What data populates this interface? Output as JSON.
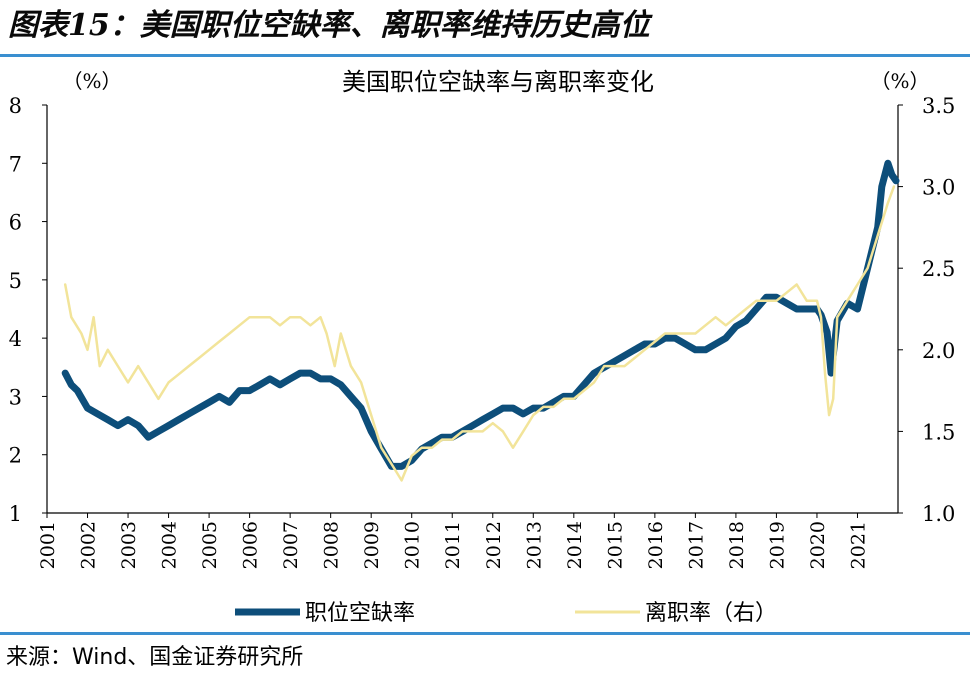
{
  "figure": {
    "title": "图表15：美国职位空缺率、离职率维持历史高位",
    "source": "来源：Wind、国金证券研究所"
  },
  "chart_data": {
    "type": "line",
    "title": "美国职位空缺率与离职率变化",
    "left_unit": "（%）",
    "right_unit": "（%）",
    "x_ticks": [
      "2001",
      "2002",
      "2003",
      "2004",
      "2005",
      "2006",
      "2007",
      "2008",
      "2009",
      "2010",
      "2011",
      "2012",
      "2013",
      "2014",
      "2015",
      "2016",
      "2017",
      "2018",
      "2019",
      "2020",
      "2021"
    ],
    "left_axis": {
      "min": 1,
      "max": 8,
      "ticks": [
        "1",
        "2",
        "3",
        "4",
        "5",
        "6",
        "7",
        "8"
      ]
    },
    "right_axis": {
      "min": 1.0,
      "max": 3.5,
      "ticks": [
        "1.0",
        "1.5",
        "2.0",
        "2.5",
        "3.0",
        "3.5"
      ]
    },
    "grid": false,
    "legend_position": "bottom",
    "series": [
      {
        "name": "职位空缺率",
        "axis": "left",
        "color": "#0d4e7a",
        "x": [
          2001.45,
          2001.6,
          2001.75,
          2002.0,
          2002.25,
          2002.5,
          2002.75,
          2003.0,
          2003.25,
          2003.5,
          2003.75,
          2004.0,
          2004.25,
          2004.5,
          2004.75,
          2005.0,
          2005.25,
          2005.5,
          2005.75,
          2006.0,
          2006.25,
          2006.5,
          2006.75,
          2007.0,
          2007.25,
          2007.5,
          2007.75,
          2008.0,
          2008.25,
          2008.5,
          2008.75,
          2009.0,
          2009.25,
          2009.5,
          2009.75,
          2010.0,
          2010.25,
          2010.5,
          2010.75,
          2011.0,
          2011.25,
          2011.5,
          2011.75,
          2012.0,
          2012.25,
          2012.5,
          2012.75,
          2013.0,
          2013.25,
          2013.5,
          2013.75,
          2014.0,
          2014.25,
          2014.5,
          2014.75,
          2015.0,
          2015.25,
          2015.5,
          2015.75,
          2016.0,
          2016.25,
          2016.5,
          2016.75,
          2017.0,
          2017.25,
          2017.5,
          2017.75,
          2018.0,
          2018.25,
          2018.5,
          2018.75,
          2019.0,
          2019.25,
          2019.5,
          2019.75,
          2020.0,
          2020.1,
          2020.25,
          2020.35,
          2020.5,
          2020.75,
          2021.0,
          2021.25,
          2021.5,
          2021.6,
          2021.75,
          2021.85,
          2021.95
        ],
        "values": [
          3.4,
          3.2,
          3.1,
          2.8,
          2.7,
          2.6,
          2.5,
          2.6,
          2.5,
          2.3,
          2.4,
          2.5,
          2.6,
          2.7,
          2.8,
          2.9,
          3.0,
          2.9,
          3.1,
          3.1,
          3.2,
          3.3,
          3.2,
          3.3,
          3.4,
          3.4,
          3.3,
          3.3,
          3.2,
          3.0,
          2.8,
          2.4,
          2.1,
          1.8,
          1.8,
          1.9,
          2.1,
          2.2,
          2.3,
          2.3,
          2.4,
          2.5,
          2.6,
          2.7,
          2.8,
          2.8,
          2.7,
          2.8,
          2.8,
          2.9,
          3.0,
          3.0,
          3.2,
          3.4,
          3.5,
          3.6,
          3.7,
          3.8,
          3.9,
          3.9,
          4.0,
          4.0,
          3.9,
          3.8,
          3.8,
          3.9,
          4.0,
          4.2,
          4.3,
          4.5,
          4.7,
          4.7,
          4.6,
          4.5,
          4.5,
          4.5,
          4.4,
          4.1,
          3.4,
          4.3,
          4.6,
          4.5,
          5.2,
          5.9,
          6.6,
          7.0,
          6.8,
          6.7
        ]
      },
      {
        "name": "离职率（右）",
        "axis": "right",
        "color": "#f2e49a",
        "x": [
          2001.45,
          2001.6,
          2001.85,
          2002.0,
          2002.15,
          2002.3,
          2002.5,
          2002.75,
          2003.0,
          2003.25,
          2003.5,
          2003.75,
          2004.0,
          2004.25,
          2004.5,
          2004.75,
          2005.0,
          2005.25,
          2005.5,
          2005.75,
          2006.0,
          2006.25,
          2006.5,
          2006.75,
          2007.0,
          2007.25,
          2007.5,
          2007.75,
          2007.9,
          2008.1,
          2008.25,
          2008.5,
          2008.75,
          2009.0,
          2009.25,
          2009.5,
          2009.75,
          2010.0,
          2010.25,
          2010.5,
          2010.75,
          2011.0,
          2011.25,
          2011.5,
          2011.75,
          2012.0,
          2012.25,
          2012.5,
          2012.75,
          2013.0,
          2013.25,
          2013.5,
          2013.75,
          2014.0,
          2014.25,
          2014.5,
          2014.75,
          2015.0,
          2015.25,
          2015.5,
          2015.75,
          2016.0,
          2016.25,
          2016.5,
          2016.75,
          2017.0,
          2017.25,
          2017.5,
          2017.75,
          2018.0,
          2018.25,
          2018.5,
          2018.75,
          2019.0,
          2019.25,
          2019.5,
          2019.75,
          2020.0,
          2020.1,
          2020.2,
          2020.3,
          2020.4,
          2020.5,
          2020.75,
          2021.0,
          2021.25,
          2021.5,
          2021.75,
          2021.9
        ],
        "values": [
          2.4,
          2.2,
          2.1,
          2.0,
          2.2,
          1.9,
          2.0,
          1.9,
          1.8,
          1.9,
          1.8,
          1.7,
          1.8,
          1.85,
          1.9,
          1.95,
          2.0,
          2.05,
          2.1,
          2.15,
          2.2,
          2.2,
          2.2,
          2.15,
          2.2,
          2.2,
          2.15,
          2.2,
          2.1,
          1.9,
          2.1,
          1.9,
          1.8,
          1.6,
          1.4,
          1.3,
          1.2,
          1.35,
          1.4,
          1.4,
          1.45,
          1.45,
          1.5,
          1.5,
          1.5,
          1.55,
          1.5,
          1.4,
          1.5,
          1.6,
          1.65,
          1.65,
          1.7,
          1.7,
          1.75,
          1.8,
          1.9,
          1.9,
          1.9,
          1.95,
          2.0,
          2.05,
          2.1,
          2.1,
          2.1,
          2.1,
          2.15,
          2.2,
          2.15,
          2.2,
          2.25,
          2.3,
          2.3,
          2.3,
          2.35,
          2.4,
          2.3,
          2.3,
          2.2,
          1.85,
          1.6,
          1.7,
          2.2,
          2.3,
          2.4,
          2.5,
          2.7,
          2.9,
          3.0
        ]
      }
    ]
  }
}
